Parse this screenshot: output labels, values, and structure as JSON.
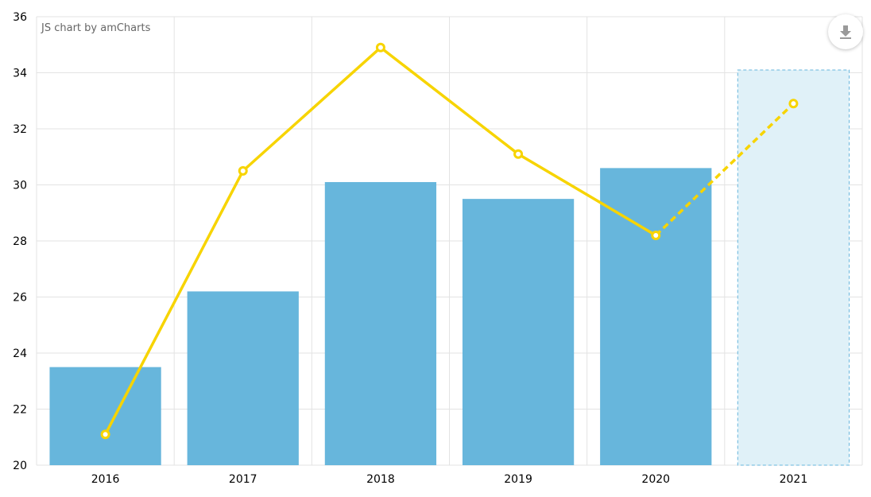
{
  "credit": "JS chart by amCharts",
  "export_button": {
    "icon": "download-icon"
  },
  "colors": {
    "bar": "#67b6dc",
    "bar_projected_fill": "#e0f1f8",
    "bar_projected_stroke": "#67b6dc",
    "line": "#f7d400",
    "grid": "#e3e3e3",
    "axis_text": "#000000"
  },
  "chart_data": {
    "type": "bar",
    "categories": [
      "2016",
      "2017",
      "2018",
      "2019",
      "2020",
      "2021"
    ],
    "series": [
      {
        "type": "bar",
        "values": [
          23.5,
          26.2,
          30.1,
          29.5,
          30.6,
          34.1
        ],
        "projected_from_index": 5
      },
      {
        "type": "line",
        "values": [
          21.1,
          30.5,
          34.9,
          31.1,
          28.2,
          32.9
        ],
        "dashed_from_index": 4
      }
    ],
    "ylim": [
      20,
      36
    ],
    "yticks": [
      20,
      22,
      24,
      26,
      28,
      30,
      32,
      34,
      36
    ],
    "grid": true
  }
}
